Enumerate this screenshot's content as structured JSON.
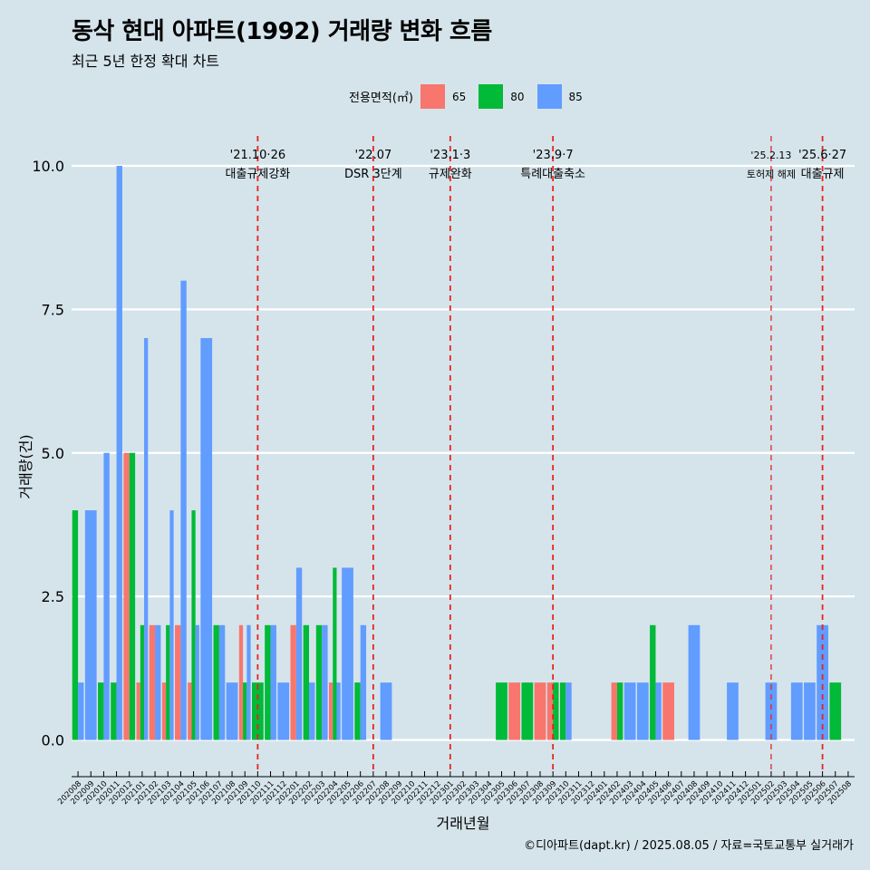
{
  "title": "동삭 현대 아파트(1992) 거래량 변화 흐름",
  "subtitle": "최근 5년 한정 확대 차트",
  "caption": "©디아파트(dapt.kr) / 2025.08.05 / 자료=국토교통부 실거래가",
  "legend": {
    "title": "전용면적(㎡)",
    "items": [
      {
        "label": "65",
        "color": "#f8766d"
      },
      {
        "label": "80",
        "color": "#00ba38"
      },
      {
        "label": "85",
        "color": "#619cff"
      }
    ]
  },
  "chart_data": {
    "type": "bar",
    "xlabel": "거래년월",
    "ylabel": "거래량(건)",
    "ylim": [
      -0.45,
      10.6
    ],
    "yticks": [
      "0.0",
      "2.5",
      "5.0",
      "7.5",
      "10.0"
    ],
    "grid": "horizontal",
    "categories": [
      "202008",
      "202009",
      "202010",
      "202011",
      "202012",
      "202101",
      "202102",
      "202103",
      "202104",
      "202105",
      "202106",
      "202107",
      "202108",
      "202109",
      "202110",
      "202111",
      "202112",
      "202201",
      "202202",
      "202203",
      "202204",
      "202205",
      "202206",
      "202207",
      "202208",
      "202209",
      "202210",
      "202211",
      "202212",
      "202301",
      "202302",
      "202303",
      "202304",
      "202305",
      "202306",
      "202307",
      "202308",
      "202309",
      "202310",
      "202311",
      "202312",
      "202401",
      "202402",
      "202403",
      "202404",
      "202405",
      "202406",
      "202407",
      "202408",
      "202409",
      "202410",
      "202411",
      "202412",
      "202501",
      "202502",
      "202503",
      "202504",
      "202505",
      "202506",
      "202507",
      "202508"
    ],
    "bars": [
      {
        "month": "202008",
        "segments": [
          {
            "area": "80",
            "value": 4
          },
          {
            "area": "85",
            "value": 1
          }
        ]
      },
      {
        "month": "202009",
        "segments": [
          {
            "area": "85",
            "value": 4
          }
        ]
      },
      {
        "month": "202010",
        "segments": [
          {
            "area": "80",
            "value": 1
          },
          {
            "area": "85",
            "value": 5
          }
        ]
      },
      {
        "month": "202011",
        "segments": [
          {
            "area": "80",
            "value": 1
          },
          {
            "area": "85",
            "value": 10
          }
        ]
      },
      {
        "month": "202012",
        "segments": [
          {
            "area": "65",
            "value": 5
          },
          {
            "area": "80",
            "value": 5
          }
        ]
      },
      {
        "month": "202101",
        "segments": [
          {
            "area": "65",
            "value": 1
          },
          {
            "area": "80",
            "value": 2
          },
          {
            "area": "85",
            "value": 7
          }
        ]
      },
      {
        "month": "202102",
        "segments": [
          {
            "area": "65",
            "value": 2
          },
          {
            "area": "85",
            "value": 2
          }
        ]
      },
      {
        "month": "202103",
        "segments": [
          {
            "area": "65",
            "value": 1
          },
          {
            "area": "80",
            "value": 2
          },
          {
            "area": "85",
            "value": 4
          }
        ]
      },
      {
        "month": "202104",
        "segments": [
          {
            "area": "65",
            "value": 2
          },
          {
            "area": "85",
            "value": 8
          }
        ]
      },
      {
        "month": "202105",
        "segments": [
          {
            "area": "65",
            "value": 1
          },
          {
            "area": "80",
            "value": 4
          },
          {
            "area": "85",
            "value": 2
          }
        ]
      },
      {
        "month": "202106",
        "segments": [
          {
            "area": "85",
            "value": 7
          }
        ]
      },
      {
        "month": "202107",
        "segments": [
          {
            "area": "80",
            "value": 2
          },
          {
            "area": "85",
            "value": 2
          }
        ]
      },
      {
        "month": "202108",
        "segments": [
          {
            "area": "85",
            "value": 1
          }
        ]
      },
      {
        "month": "202109",
        "segments": [
          {
            "area": "65",
            "value": 2
          },
          {
            "area": "80",
            "value": 1
          },
          {
            "area": "85",
            "value": 2
          }
        ]
      },
      {
        "month": "202110",
        "segments": [
          {
            "area": "80",
            "value": 1
          }
        ]
      },
      {
        "month": "202111",
        "segments": [
          {
            "area": "80",
            "value": 2
          },
          {
            "area": "85",
            "value": 2
          }
        ]
      },
      {
        "month": "202112",
        "segments": [
          {
            "area": "85",
            "value": 1
          }
        ]
      },
      {
        "month": "202201",
        "segments": [
          {
            "area": "65",
            "value": 2
          },
          {
            "area": "85",
            "value": 3
          }
        ]
      },
      {
        "month": "202202",
        "segments": [
          {
            "area": "80",
            "value": 2
          },
          {
            "area": "85",
            "value": 1
          }
        ]
      },
      {
        "month": "202203",
        "segments": [
          {
            "area": "80",
            "value": 2
          },
          {
            "area": "85",
            "value": 2
          }
        ]
      },
      {
        "month": "202204",
        "segments": [
          {
            "area": "65",
            "value": 1
          },
          {
            "area": "80",
            "value": 3
          },
          {
            "area": "85",
            "value": 1
          }
        ]
      },
      {
        "month": "202205",
        "segments": [
          {
            "area": "85",
            "value": 3
          }
        ]
      },
      {
        "month": "202206",
        "segments": [
          {
            "area": "80",
            "value": 1
          },
          {
            "area": "85",
            "value": 2
          }
        ]
      },
      {
        "month": "202208",
        "segments": [
          {
            "area": "85",
            "value": 1
          }
        ]
      },
      {
        "month": "202305",
        "segments": [
          {
            "area": "80",
            "value": 1
          }
        ]
      },
      {
        "month": "202306",
        "segments": [
          {
            "area": "65",
            "value": 1
          }
        ]
      },
      {
        "month": "202307",
        "segments": [
          {
            "area": "80",
            "value": 1
          }
        ]
      },
      {
        "month": "202308",
        "segments": [
          {
            "area": "65",
            "value": 1
          }
        ]
      },
      {
        "month": "202309",
        "segments": [
          {
            "area": "65",
            "value": 1
          },
          {
            "area": "80",
            "value": 1
          }
        ]
      },
      {
        "month": "202310",
        "segments": [
          {
            "area": "80",
            "value": 1
          },
          {
            "area": "85",
            "value": 1
          }
        ]
      },
      {
        "month": "202402",
        "segments": [
          {
            "area": "65",
            "value": 1
          },
          {
            "area": "80",
            "value": 1
          }
        ]
      },
      {
        "month": "202403",
        "segments": [
          {
            "area": "85",
            "value": 1
          }
        ]
      },
      {
        "month": "202404",
        "segments": [
          {
            "area": "85",
            "value": 1
          }
        ]
      },
      {
        "month": "202405",
        "segments": [
          {
            "area": "80",
            "value": 2
          },
          {
            "area": "85",
            "value": 1
          }
        ]
      },
      {
        "month": "202406",
        "segments": [
          {
            "area": "65",
            "value": 1
          }
        ]
      },
      {
        "month": "202408",
        "segments": [
          {
            "area": "85",
            "value": 2
          }
        ]
      },
      {
        "month": "202411",
        "segments": [
          {
            "area": "85",
            "value": 1
          }
        ]
      },
      {
        "month": "202502",
        "segments": [
          {
            "area": "85",
            "value": 1
          }
        ]
      },
      {
        "month": "202504",
        "segments": [
          {
            "area": "85",
            "value": 1
          }
        ]
      },
      {
        "month": "202505",
        "segments": [
          {
            "area": "85",
            "value": 1
          }
        ]
      },
      {
        "month": "202506",
        "segments": [
          {
            "area": "85",
            "value": 2
          }
        ]
      },
      {
        "month": "202507",
        "segments": [
          {
            "area": "80",
            "value": 1
          }
        ]
      }
    ],
    "annotations": [
      {
        "month": "202110",
        "date": "'21.10·26",
        "label": "대출규제강화"
      },
      {
        "month": "202207",
        "date": "'22.07",
        "label": "DSR 3단계"
      },
      {
        "month": "202301",
        "date": "'23.1·3",
        "label": "규제완화"
      },
      {
        "month": "202309",
        "date": "'23.9·7",
        "label": "특례대출축소"
      },
      {
        "month": "202502",
        "date": "'25.2.13",
        "label": "토허제 해제",
        "small": true
      },
      {
        "month": "202506",
        "date": "'25.6·27",
        "label": "대출규제"
      }
    ],
    "annotation_color": "#e8231f"
  }
}
